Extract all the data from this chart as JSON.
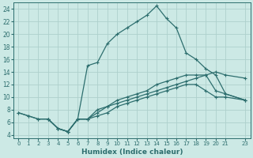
{
  "xlabel": "Humidex (Indice chaleur)",
  "bg_color": "#cce9e5",
  "line_color": "#2d6e6e",
  "grid_color": "#aed0cc",
  "xlim": [
    -0.5,
    23.5
  ],
  "ylim": [
    3.5,
    25
  ],
  "xticks": [
    0,
    1,
    2,
    3,
    4,
    5,
    6,
    7,
    8,
    9,
    10,
    11,
    12,
    13,
    14,
    15,
    16,
    17,
    18,
    19,
    20,
    21,
    23
  ],
  "yticks": [
    4,
    6,
    8,
    10,
    12,
    14,
    16,
    18,
    20,
    22,
    24
  ],
  "line_peak_x": [
    3,
    4,
    5,
    6,
    7,
    8,
    9,
    10,
    11,
    12,
    13,
    14,
    15,
    16,
    17,
    18,
    19,
    20,
    21,
    23
  ],
  "line_peak_y": [
    6.5,
    5.0,
    4.5,
    6.5,
    15.0,
    15.5,
    18.5,
    20.0,
    21.0,
    22.0,
    23.0,
    24.5,
    22.5,
    21.0,
    17.0,
    16.0,
    14.5,
    13.5,
    10.5,
    9.5
  ],
  "line_upper_x": [
    0,
    1,
    2,
    3,
    4,
    5,
    6,
    7,
    8,
    9,
    10,
    11,
    12,
    13,
    14,
    15,
    16,
    17,
    18,
    19,
    20,
    21,
    23
  ],
  "line_upper_y": [
    7.5,
    7.0,
    6.5,
    6.5,
    5.0,
    4.5,
    6.5,
    6.5,
    8.0,
    8.5,
    9.5,
    10.0,
    10.5,
    11.0,
    12.0,
    12.5,
    13.0,
    13.5,
    13.5,
    13.5,
    11.0,
    10.5,
    9.5
  ],
  "line_mid_x": [
    0,
    1,
    2,
    3,
    4,
    5,
    6,
    7,
    8,
    9,
    10,
    11,
    12,
    13,
    14,
    15,
    16,
    17,
    18,
    19,
    20,
    21,
    23
  ],
  "line_mid_y": [
    7.5,
    7.0,
    6.5,
    6.5,
    5.0,
    4.5,
    6.5,
    6.5,
    7.0,
    7.5,
    8.5,
    9.0,
    9.5,
    10.0,
    10.5,
    11.0,
    11.5,
    12.0,
    12.0,
    11.0,
    10.0,
    10.0,
    9.5
  ],
  "line_lower_x": [
    3,
    4,
    5,
    6,
    7,
    8,
    9,
    10,
    11,
    12,
    13,
    14,
    15,
    16,
    17,
    18,
    19,
    20,
    21,
    23
  ],
  "line_lower_y": [
    6.5,
    5.0,
    4.5,
    6.5,
    6.5,
    7.5,
    8.5,
    9.0,
    9.5,
    10.0,
    10.5,
    11.0,
    11.5,
    12.0,
    12.5,
    13.0,
    13.5,
    14.0,
    13.5,
    13.0
  ]
}
